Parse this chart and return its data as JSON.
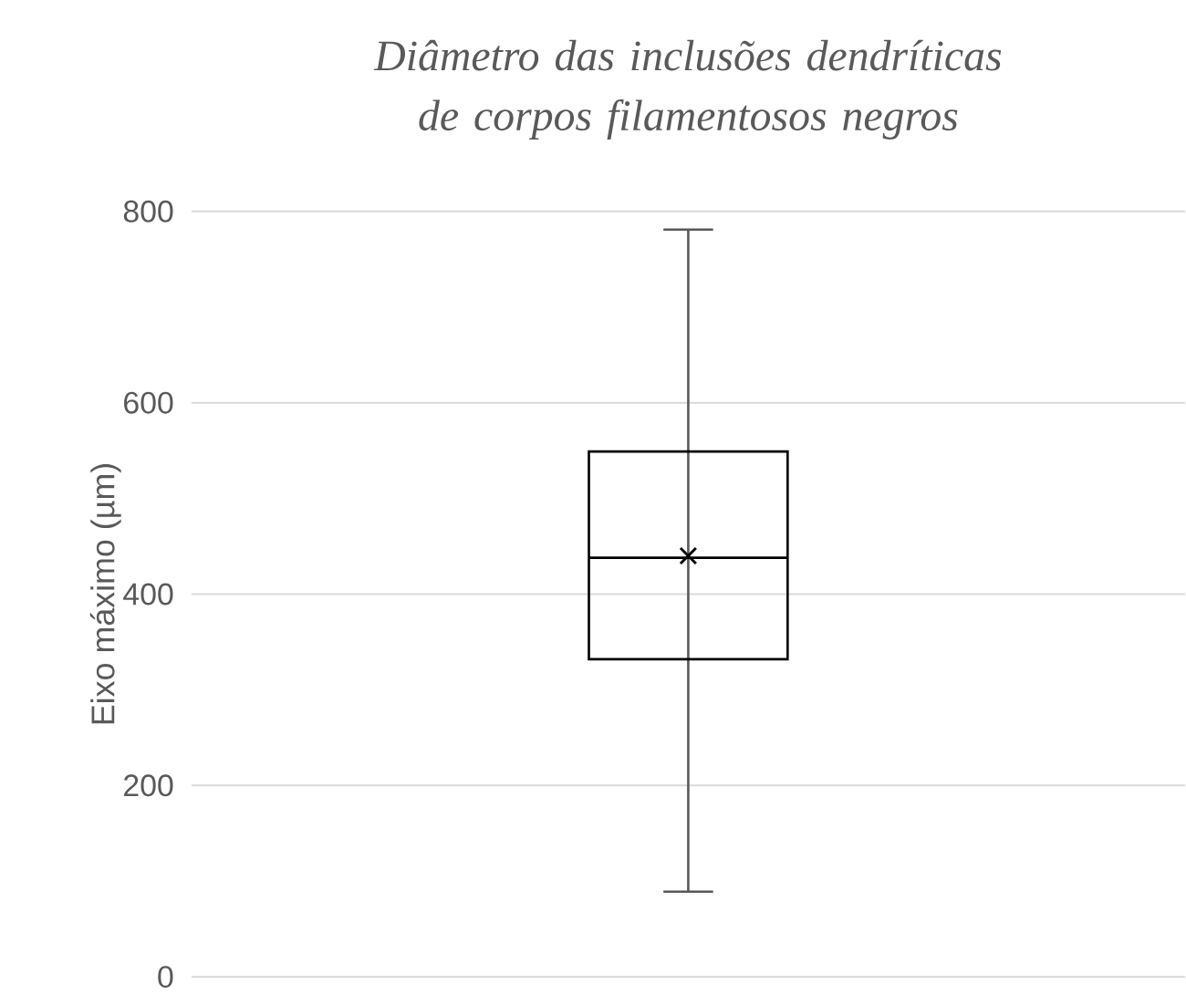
{
  "chart_data": {
    "type": "box",
    "title": "*Diâmetro das inclusões dendríticas de corpos filamentosos negros*",
    "ylabel": "Eixo máximo (µm)",
    "categories": [
      null
    ],
    "boxes": [
      {
        "low": 89,
        "q1": 332,
        "median": 438,
        "q3": 549,
        "high": 781,
        "mean": 440
      }
    ],
    "color": "#000000",
    "ylim": [
      0,
      800
    ],
    "yticks": [
      0,
      200,
      400,
      600,
      800
    ],
    "grid": "y"
  }
}
